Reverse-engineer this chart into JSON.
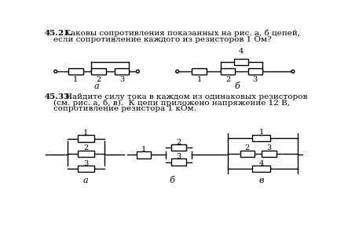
{
  "bg_color": "#ffffff",
  "text_color": "#000000",
  "bold_45_21": "45.21.",
  "text_45_21_1": "Каковы сопротивления показанных на рис. а, б цепей,",
  "text_45_21_2": "если сопротивление каждого из резисторов 1 Ом?",
  "bold_45_33": "45.33.",
  "text_45_33_1": "Найдите силу тока в каждом из одинаковых резисторов",
  "text_45_33_2": "(см. рис. а, б, в).  К цепи приложено напряжение 12 В,",
  "text_45_33_3": "сопротивление резистора 1 кОм."
}
